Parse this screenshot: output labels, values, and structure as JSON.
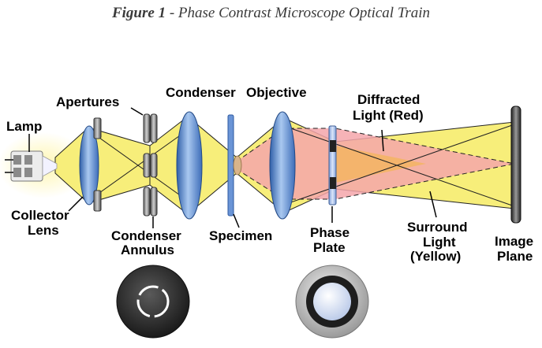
{
  "figure": {
    "number": "Figure 1",
    "separator": " - ",
    "title": "Phase Contrast Microscope Optical Train"
  },
  "labels": {
    "lamp": "Lamp",
    "apertures": "Apertures",
    "condenser": "Condenser",
    "objective": "Objective",
    "diffracted_line1": "Diffracted",
    "diffracted_line2": "Light (Red)",
    "collector_line1": "Collector",
    "collector_line2": "Lens",
    "annulus_line1": "Condenser",
    "annulus_line2": "Annulus",
    "specimen": "Specimen",
    "phase_line1": "Phase",
    "phase_line2": "Plate",
    "surround_line1": "Surround",
    "surround_line2": "Light",
    "surround_line3": "(Yellow)",
    "image_line1": "Image",
    "image_line2": "Plane"
  },
  "colors": {
    "surround_light": "#f7ee7a",
    "diffracted_light": "#f4a6aa",
    "overlap": "#f4b46c",
    "lens_blue": "#5e8fd0",
    "metal_dark": "#3a3a3a"
  }
}
